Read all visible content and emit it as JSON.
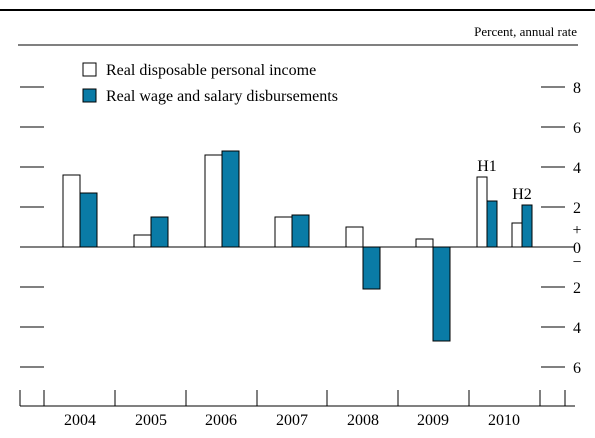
{
  "chart_data": {
    "type": "bar",
    "title": "",
    "unit_label": "Percent, annual rate",
    "categories": [
      "2004",
      "2005",
      "2006",
      "2007",
      "2008",
      "2009",
      "2010",
      "2010"
    ],
    "category_labels": [
      "2004",
      "2005",
      "2006",
      "2007",
      "2008",
      "2009",
      "2010"
    ],
    "series": [
      {
        "name": "Real disposable personal income",
        "color": "#ffffff",
        "values": [
          3.6,
          0.6,
          4.6,
          1.5,
          1.0,
          0.4,
          3.5,
          1.2
        ]
      },
      {
        "name": "Real wage and salary disbursements",
        "color": "#0a7ba6",
        "values": [
          2.7,
          1.5,
          4.8,
          1.6,
          -2.1,
          -4.7,
          2.3,
          2.1
        ]
      }
    ],
    "annotations": [
      "H1",
      "H2"
    ],
    "y_ticks": [
      8,
      6,
      4,
      2,
      0,
      -2,
      -4,
      -6
    ],
    "y_tick_labels": [
      "8",
      "6",
      "4",
      "2",
      "0",
      "2",
      "4",
      "6"
    ],
    "y_sign_labels": {
      "plus": "+",
      "minus": "−"
    },
    "ylim": [
      -7.8,
      9.5
    ],
    "grid": false,
    "legend_position": "top-left"
  }
}
